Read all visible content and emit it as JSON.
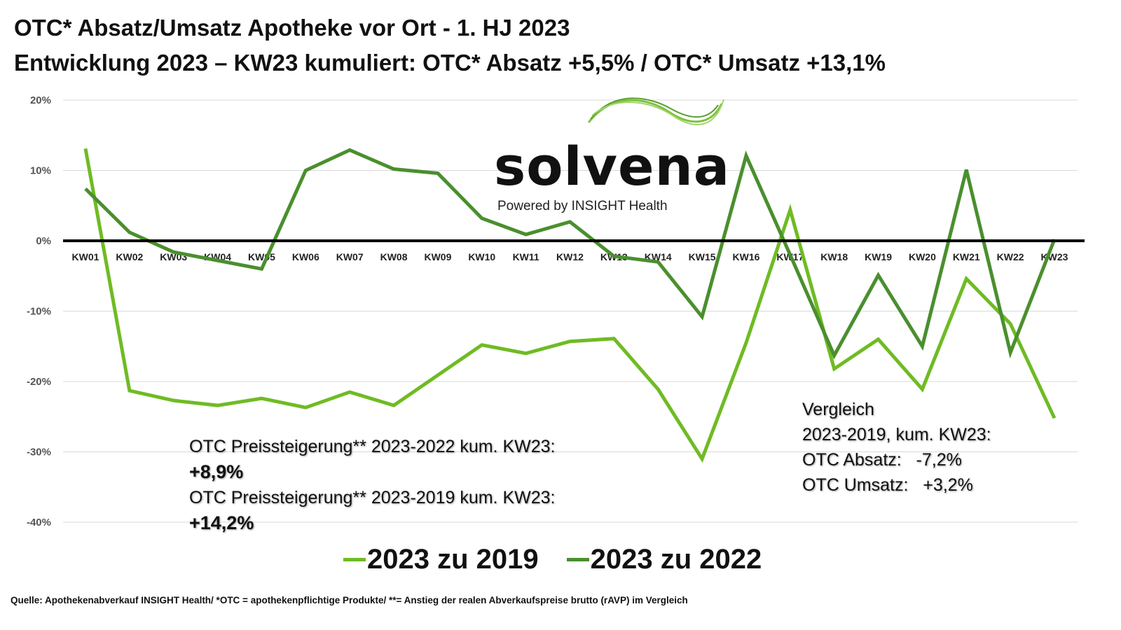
{
  "title_line1": "OTC* Absatz/Umsatz Apotheke vor Ort - 1. HJ 2023",
  "title_line2": "Entwicklung 2023 – KW23 kumuliert: OTC* Absatz +5,5% / OTC* Umsatz +13,1%",
  "logo": {
    "word": "solvena",
    "sub": "Powered by INSIGHT Health"
  },
  "notes_left": {
    "l1": "OTC Preissteigerung** 2023-2022 kum. KW23:",
    "v1": "+8,9%",
    "l2": "OTC Preissteigerung** 2023-2019 kum. KW23:",
    "v2": "+14,2%"
  },
  "notes_right": {
    "l1": "Vergleich",
    "l2": "2023-2019, kum. KW23:",
    "l3": "OTC Absatz:   -7,2%",
    "l4": "OTC Umsatz:   +3,2%"
  },
  "source": "Quelle: Apothekenabverkauf INSIGHT Health/ *OTC = apothekenpflichtige Produkte/ **= Anstieg der realen Abverkaufspreise brutto (rAVP) im Vergleich",
  "chart_data": {
    "type": "line",
    "categories": [
      "KW01",
      "KW02",
      "KW03",
      "KW04",
      "KW05",
      "KW06",
      "KW07",
      "KW08",
      "KW09",
      "KW10",
      "KW11",
      "KW12",
      "KW13",
      "KW14",
      "KW15",
      "KW16",
      "KW17",
      "KW18",
      "KW19",
      "KW20",
      "KW21",
      "KW22",
      "KW23"
    ],
    "yticks": [
      20,
      10,
      0,
      -10,
      -20,
      -30,
      -40
    ],
    "ytick_labels": [
      "20%",
      "10%",
      "0%",
      "-10%",
      "-20%",
      "-30%",
      "-40%"
    ],
    "ylim": [
      -40,
      20
    ],
    "grid": true,
    "legend_position": "bottom",
    "series": [
      {
        "name": "2023 zu 2019",
        "color": "#6fbb24",
        "values": [
          13.1,
          -21.3,
          -22.7,
          -23.4,
          -22.4,
          -23.7,
          -21.5,
          -23.4,
          -19.1,
          -14.8,
          -16.0,
          -14.3,
          -13.9,
          -21.1,
          -31.0,
          -14.5,
          4.4,
          -18.2,
          -14.0,
          -21.1,
          -5.4,
          -11.8,
          -25.2
        ]
      },
      {
        "name": "2023 zu 2022",
        "color": "#4a8f2e",
        "values": [
          7.4,
          1.2,
          -1.6,
          -2.8,
          -4.0,
          10.0,
          12.9,
          10.2,
          9.6,
          3.2,
          0.9,
          2.7,
          -2.2,
          -3.0,
          -10.8,
          12.1,
          -2.0,
          -16.3,
          -4.9,
          -15.0,
          10.1,
          -15.9,
          0.2
        ]
      }
    ]
  }
}
